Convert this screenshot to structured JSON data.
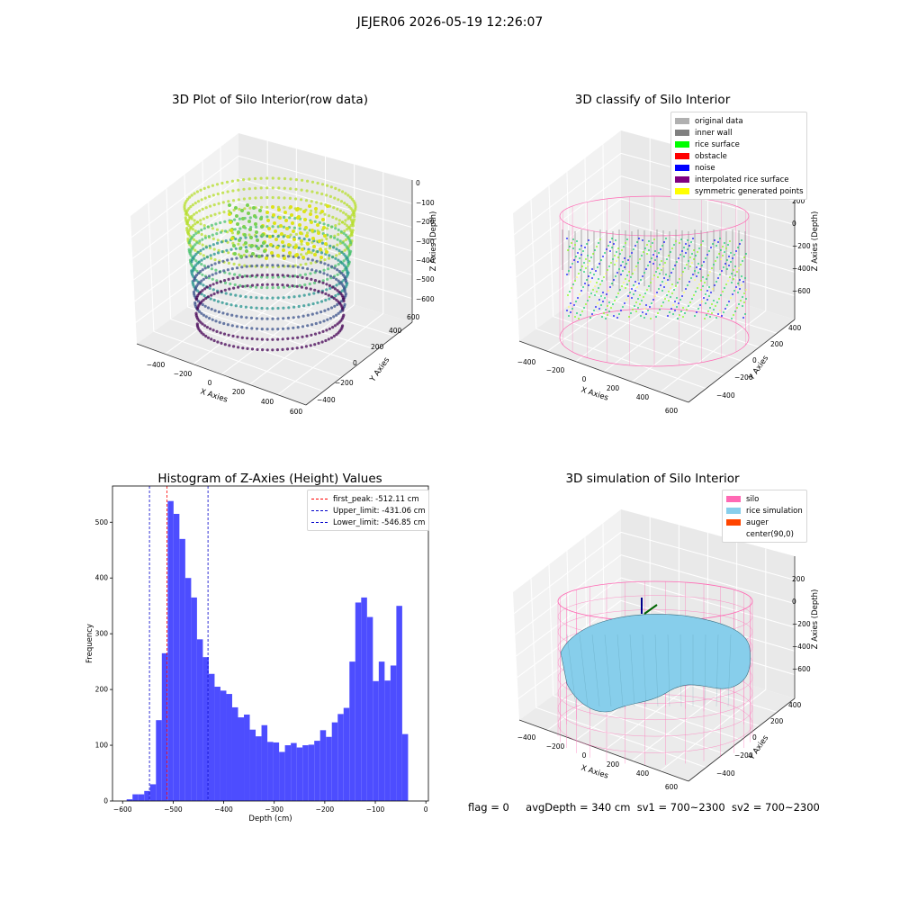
{
  "suptitle": "JEJER06 2026-05-19 12:26:07",
  "colors": {
    "hist_bar": "#4d4dff",
    "first_peak": "#ff0000",
    "limit": "#0000cc",
    "silo_wire": "#ff69b4",
    "rice_surface": "#87ceeb"
  },
  "plot1": {
    "title": "3D Plot of Silo Interior(row data)",
    "xlabel": "X Axies",
    "ylabel": "Y Axies",
    "zlabel": "Z Axies (Depth)",
    "xticks": [
      "−400",
      "−200",
      "0",
      "200",
      "400",
      "600"
    ],
    "yticks": [
      "−400",
      "−200",
      "0",
      "200",
      "400",
      "600"
    ],
    "zticks": [
      "0",
      "−100",
      "−200",
      "−300",
      "−400",
      "−500",
      "−600"
    ]
  },
  "plot2": {
    "title": "3D classify of Silo Interior",
    "xlabel": "X Axies",
    "ylabel": "Y Axies",
    "zlabel": "Z Axies (Depth)",
    "xticks": [
      "−400",
      "−200",
      "0",
      "200",
      "400",
      "600"
    ],
    "yticks": [
      "−400",
      "−200",
      "0",
      "200",
      "400"
    ],
    "zticks": [
      "200",
      "0",
      "−200",
      "−400",
      "−600"
    ],
    "legend": [
      {
        "label": "original data",
        "color": "#b0b0b0"
      },
      {
        "label": "inner wall",
        "color": "#808080"
      },
      {
        "label": "rice surface",
        "color": "#00ff00"
      },
      {
        "label": "obstacle",
        "color": "#ff0000"
      },
      {
        "label": "noise",
        "color": "#0000ff"
      },
      {
        "label": "interpolated rice surface",
        "color": "#800080"
      },
      {
        "label": "symmetric generated points",
        "color": "#ffff00"
      }
    ]
  },
  "plot4": {
    "title": "3D simulation of Silo Interior",
    "xlabel": "X Axies",
    "ylabel": "Y Axies",
    "zlabel": "Z Axies (Depth)",
    "xticks": [
      "−400",
      "−200",
      "0",
      "200",
      "400",
      "600"
    ],
    "yticks": [
      "−400",
      "−200",
      "0",
      "200",
      "400"
    ],
    "zticks": [
      "200",
      "0",
      "−200",
      "−400",
      "−600"
    ],
    "legend": [
      {
        "label": "silo",
        "color": "#ff69b4"
      },
      {
        "label": "rice simulation",
        "color": "#87ceeb"
      },
      {
        "label": "auger",
        "color": "#ff4500"
      },
      {
        "label": "center(90,0)",
        "color": ""
      }
    ]
  },
  "chart_data": {
    "type": "bar",
    "title": "Histogram of Z-Axies (Height) Values",
    "xlabel": "Depth (cm)",
    "ylabel": "Frequency",
    "xlim": [
      -620,
      5
    ],
    "ylim": [
      0,
      565
    ],
    "xticks": [
      -600,
      -500,
      -400,
      -300,
      -200,
      -100,
      0
    ],
    "yticks": [
      0,
      100,
      200,
      300,
      400,
      500
    ],
    "bin_start": -592,
    "bin_width": 11.6,
    "values": [
      3,
      12,
      12,
      18,
      30,
      145,
      265,
      538,
      515,
      470,
      400,
      365,
      290,
      258,
      228,
      205,
      198,
      192,
      168,
      150,
      155,
      128,
      116,
      136,
      106,
      105,
      88,
      100,
      104,
      96,
      100,
      101,
      108,
      127,
      115,
      141,
      156,
      167,
      250,
      356,
      365,
      330,
      215,
      250,
      216,
      243,
      350,
      120
    ],
    "vlines": [
      {
        "label": "first_peak: -512.11 cm",
        "x": -512.11,
        "color": "#ff0000"
      },
      {
        "label": "Upper_limit: -431.06 cm",
        "x": -431.06,
        "color": "#0000cc"
      },
      {
        "label": "Lower_limit: -546.85 cm",
        "x": -546.85,
        "color": "#0000cc"
      }
    ],
    "legend_position": "top-right"
  },
  "footer": {
    "flag": "flag = 0",
    "avg": "avgDepth = 340 cm",
    "sv1": "sv1 = 700~2300",
    "sv2": "sv2 = 700~2300"
  }
}
